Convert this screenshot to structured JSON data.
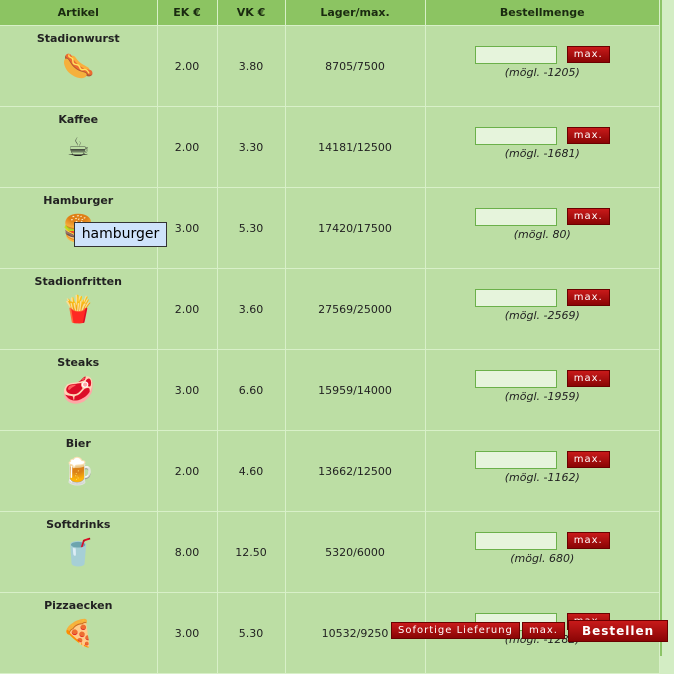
{
  "headers": [
    "Artikel",
    "EK €",
    "VK €",
    "Lager/max.",
    "Bestellmenge"
  ],
  "rows": [
    {
      "name": "Stadionwurst",
      "icon": "🌭",
      "ek": "2.00",
      "vk": "3.80",
      "lager": "8705/7500",
      "hint": "(mögl. -1205)"
    },
    {
      "name": "Kaffee",
      "icon": "☕",
      "ek": "2.00",
      "vk": "3.30",
      "lager": "14181/12500",
      "hint": "(mögl. -1681)"
    },
    {
      "name": "Hamburger",
      "icon": "🍔",
      "ek": "3.00",
      "vk": "5.30",
      "lager": "17420/17500",
      "hint": "(mögl. 80)"
    },
    {
      "name": "Stadionfritten",
      "icon": "🍟",
      "ek": "2.00",
      "vk": "3.60",
      "lager": "27569/25000",
      "hint": "(mögl. -2569)"
    },
    {
      "name": "Steaks",
      "icon": "🥩",
      "ek": "3.00",
      "vk": "6.60",
      "lager": "15959/14000",
      "hint": "(mögl. -1959)"
    },
    {
      "name": "Bier",
      "icon": "🍺",
      "ek": "2.00",
      "vk": "4.60",
      "lager": "13662/12500",
      "hint": "(mögl. -1162)"
    },
    {
      "name": "Softdrinks",
      "icon": "🥤",
      "ek": "8.00",
      "vk": "12.50",
      "lager": "5320/6000",
      "hint": "(mögl. 680)"
    },
    {
      "name": "Pizzaecken",
      "icon": "🍕",
      "ek": "3.00",
      "vk": "5.30",
      "lager": "10532/9250",
      "hint": "(mögl. -1282)"
    }
  ],
  "max_label": "max.",
  "footer": {
    "sofort": "Sofortige Lieferung",
    "max": "max.",
    "bestellen": "Bestellen"
  },
  "tooltip": "hamburger"
}
